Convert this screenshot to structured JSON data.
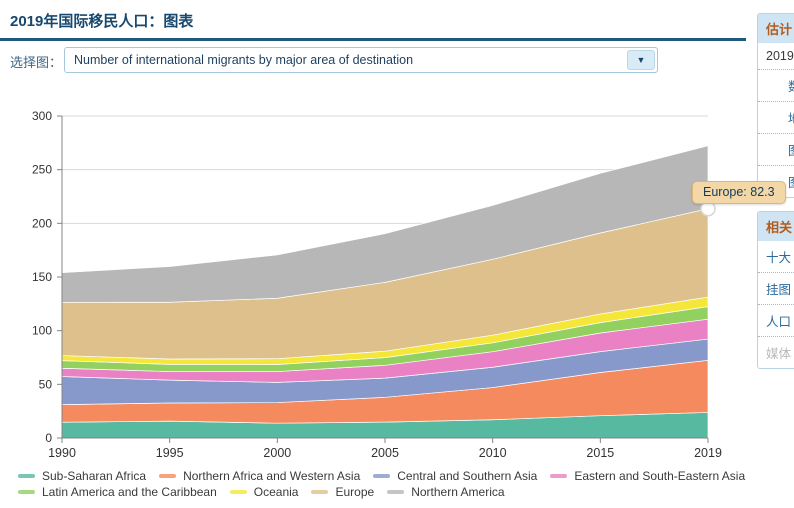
{
  "page": {
    "title": "2019年国际移民人口：图表"
  },
  "controls": {
    "select_label": "选择图：",
    "select_value": "Number of international migrants by major area of destination",
    "arrow_icon": "▼"
  },
  "sidebar": {
    "estimates_box": {
      "header": "估计",
      "items": [
        {
          "label": "2019"
        },
        {
          "label": "数"
        },
        {
          "label": "地"
        },
        {
          "label": "图"
        },
        {
          "label": "图"
        }
      ]
    },
    "related_box": {
      "header": "相关",
      "items": [
        {
          "label": "十大"
        },
        {
          "label": "挂图"
        },
        {
          "label": "人口"
        },
        {
          "label": "媒体"
        }
      ]
    }
  },
  "tooltip": {
    "text": "Europe: 82.3"
  },
  "chart_data": {
    "type": "area",
    "stacked": true,
    "title": "",
    "xlabel": "",
    "ylabel": "",
    "x": [
      1990,
      1995,
      2000,
      2005,
      2010,
      2015,
      2019
    ],
    "ylim": [
      0,
      300
    ],
    "y_ticks": [
      0,
      50,
      100,
      150,
      200,
      250,
      300
    ],
    "grid": true,
    "legend_position": "bottom",
    "series": [
      {
        "name": "Sub-Saharan Africa",
        "color": "#57b99f",
        "values": [
          14.7,
          15.7,
          13.8,
          14.8,
          17.0,
          20.8,
          23.8
        ]
      },
      {
        "name": "Northern Africa and Western Asia",
        "color": "#f58a5f",
        "values": [
          16.4,
          16.9,
          19.2,
          23.1,
          30.0,
          40.2,
          48.6
        ]
      },
      {
        "name": "Central and Southern Asia",
        "color": "#8799cb",
        "values": [
          26.2,
          21.3,
          18.8,
          17.9,
          18.9,
          19.5,
          19.8
        ]
      },
      {
        "name": "Eastern and South-Eastern Asia",
        "color": "#e981c4",
        "values": [
          7.7,
          8.0,
          10.1,
          11.9,
          14.5,
          17.3,
          18.5
        ]
      },
      {
        "name": "Latin America and the Caribbean",
        "color": "#92d060",
        "values": [
          7.1,
          6.7,
          6.6,
          7.2,
          8.3,
          9.7,
          11.7
        ]
      },
      {
        "name": "Oceania",
        "color": "#f5e73a",
        "values": [
          4.7,
          5.0,
          5.4,
          6.0,
          7.1,
          8.1,
          8.9
        ]
      },
      {
        "name": "Europe",
        "color": "#dec08c",
        "values": [
          49.6,
          52.9,
          56.3,
          64.1,
          70.7,
          75.4,
          82.3
        ]
      },
      {
        "name": "Northern America",
        "color": "#b7b7b7",
        "values": [
          27.6,
          33.3,
          40.4,
          45.4,
          50.2,
          55.6,
          58.6
        ]
      }
    ],
    "highlight": {
      "series": "Europe",
      "x": 2019,
      "value": 82.3
    }
  }
}
